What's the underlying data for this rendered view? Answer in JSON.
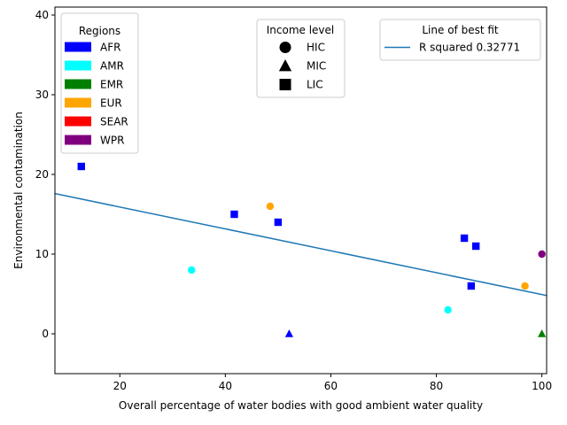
{
  "chart_data": {
    "type": "scatter",
    "xlabel": "Overall percentage of water bodies with good ambient water quality",
    "ylabel": "Environmental contamination",
    "xlim": [
      7.7,
      100.9
    ],
    "ylim": [
      -5,
      41
    ],
    "x_ticks": [
      20,
      40,
      60,
      80,
      100
    ],
    "y_ticks": [
      0,
      10,
      20,
      30,
      40
    ],
    "grid": false,
    "legends": {
      "regions": {
        "title": "Regions",
        "placement": "top-left",
        "items": [
          {
            "label": "AFR",
            "color": "#0000ff"
          },
          {
            "label": "AMR",
            "color": "#00ffff"
          },
          {
            "label": "EMR",
            "color": "#008000"
          },
          {
            "label": "EUR",
            "color": "#ffa500"
          },
          {
            "label": "SEAR",
            "color": "#ff0000"
          },
          {
            "label": "WPR",
            "color": "#800080"
          }
        ]
      },
      "income": {
        "title": "Income level",
        "placement": "top-center",
        "items": [
          {
            "label": "HIC",
            "marker": "circle"
          },
          {
            "label": "MIC",
            "marker": "triangle"
          },
          {
            "label": "LIC",
            "marker": "square"
          }
        ]
      },
      "fit": {
        "title": "Line of best fit",
        "placement": "top-right",
        "items": [
          {
            "label": "R squared 0.32771",
            "color": "#1f77b4"
          }
        ]
      }
    },
    "fit_line": {
      "x": [
        7.7,
        100.9
      ],
      "y": [
        17.6,
        4.8
      ],
      "color": "#1f77b4"
    },
    "points": [
      {
        "x": 12.7,
        "y": 21,
        "region": "AFR",
        "income": "LIC"
      },
      {
        "x": 41.7,
        "y": 15,
        "region": "AFR",
        "income": "LIC"
      },
      {
        "x": 50.0,
        "y": 14,
        "region": "AFR",
        "income": "LIC"
      },
      {
        "x": 85.3,
        "y": 12,
        "region": "AFR",
        "income": "LIC"
      },
      {
        "x": 87.5,
        "y": 11,
        "region": "AFR",
        "income": "LIC"
      },
      {
        "x": 86.6,
        "y": 6,
        "region": "AFR",
        "income": "LIC"
      },
      {
        "x": 52.1,
        "y": 0,
        "region": "AFR",
        "income": "MIC"
      },
      {
        "x": 33.6,
        "y": 8,
        "region": "AMR",
        "income": "HIC"
      },
      {
        "x": 82.2,
        "y": 3,
        "region": "AMR",
        "income": "HIC"
      },
      {
        "x": 48.5,
        "y": 16,
        "region": "EUR",
        "income": "HIC"
      },
      {
        "x": 96.8,
        "y": 6,
        "region": "EUR",
        "income": "HIC"
      },
      {
        "x": 100.0,
        "y": 10,
        "region": "WPR",
        "income": "HIC"
      },
      {
        "x": 100.0,
        "y": 0,
        "region": "EMR",
        "income": "MIC"
      }
    ]
  }
}
